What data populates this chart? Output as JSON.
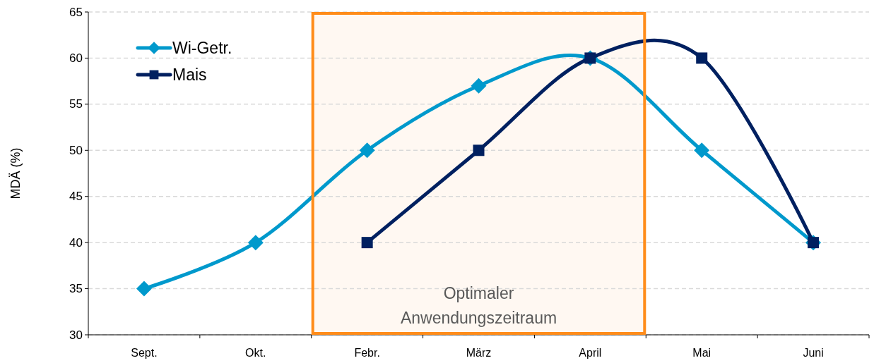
{
  "chart_data": {
    "type": "line",
    "ylabel": "MDÄ (%)",
    "categories": [
      "Sept.",
      "Okt.",
      "Febr.",
      "März",
      "April",
      "Mai",
      "Juni"
    ],
    "series": [
      {
        "name": "Wi-Getr.",
        "color": "#0099cc",
        "marker": "diamond",
        "values": [
          35,
          40,
          50,
          57,
          60,
          50,
          40
        ]
      },
      {
        "name": "Mais",
        "color": "#002060",
        "marker": "square",
        "values": [
          null,
          null,
          40,
          50,
          60,
          60,
          40
        ]
      }
    ],
    "ylim": [
      30,
      65
    ],
    "yticks": [
      30,
      35,
      40,
      45,
      50,
      55,
      60,
      65
    ],
    "grid": "y",
    "legend": "top left",
    "line_style": "solid",
    "bands": [
      {
        "axis": "x",
        "from": "Febr.",
        "to": "April",
        "label": "Optimaler Anwendungszeitraum",
        "color": "#ff8c1a"
      }
    ]
  }
}
